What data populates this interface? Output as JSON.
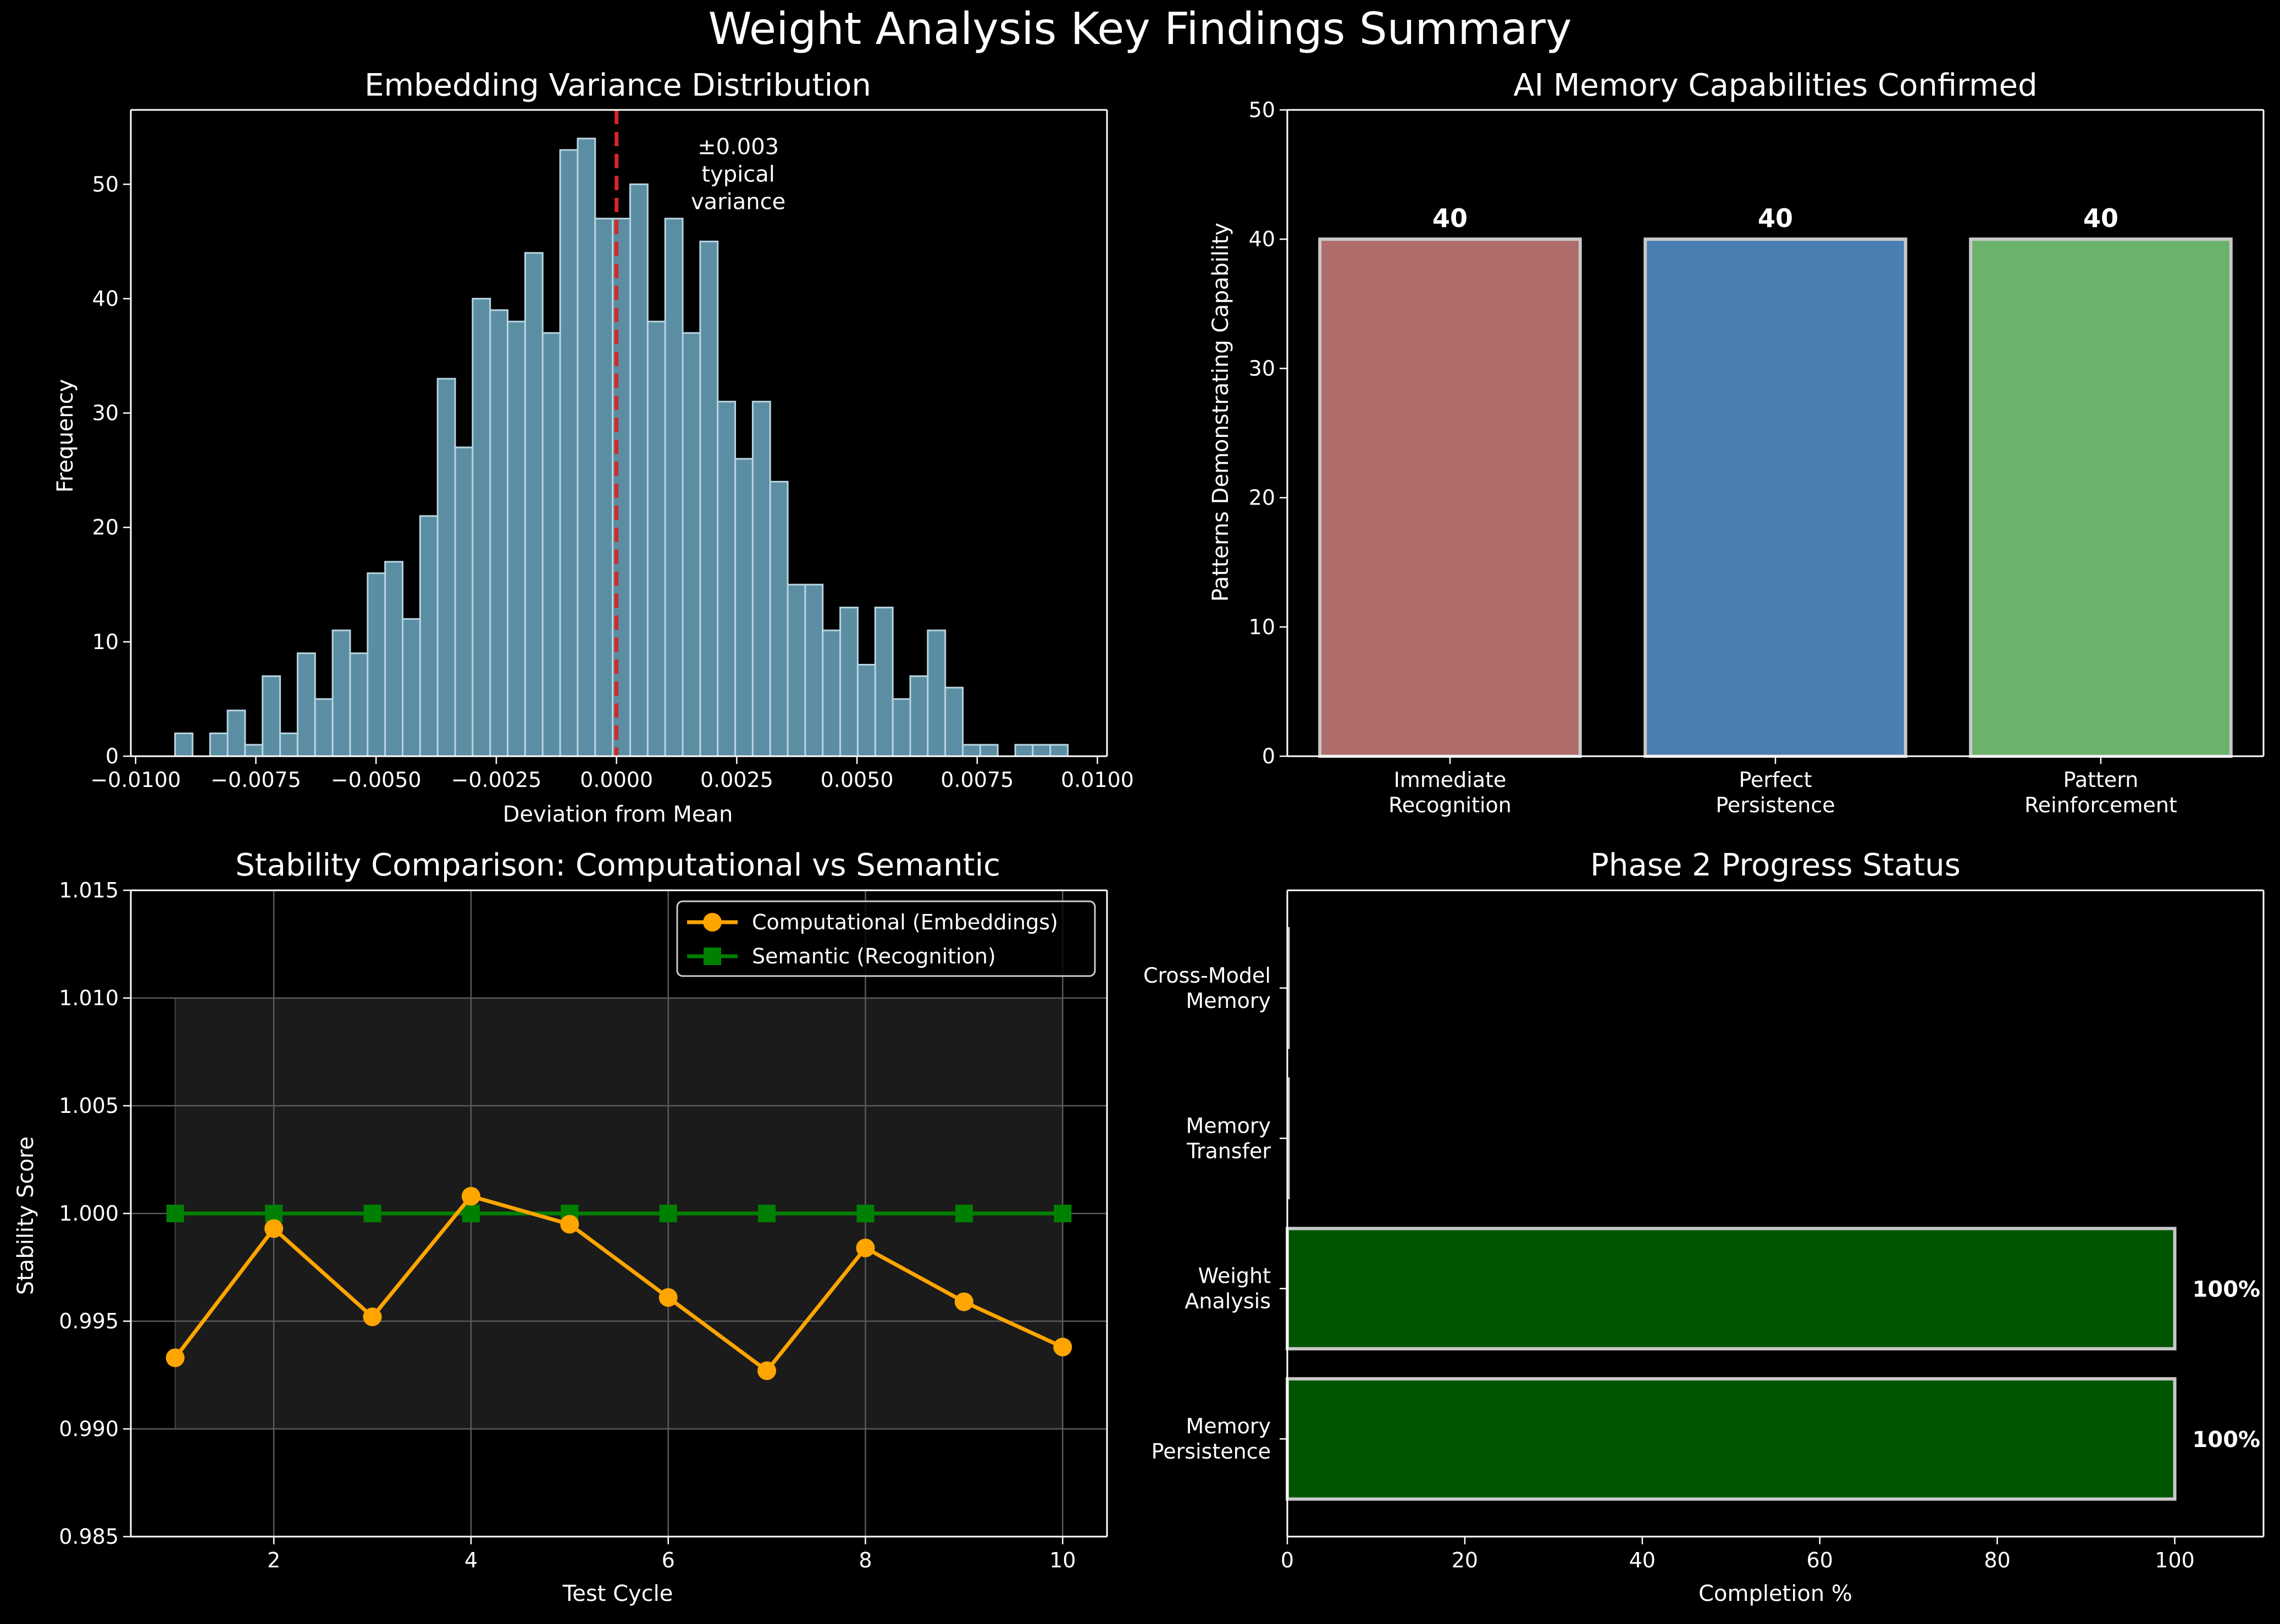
{
  "figure": {
    "title": "Weight Analysis Key Findings Summary",
    "background": "#000000"
  },
  "chart_data": [
    {
      "type": "bar",
      "subtype": "histogram",
      "title": "Embedding Variance Distribution",
      "xlabel": "Deviation from Mean",
      "ylabel": "Frequency",
      "xlim": [
        -0.0101,
        0.0102
      ],
      "ylim": [
        0,
        56.5
      ],
      "bin_start": -0.00918,
      "bin_width": 0.000364,
      "values": [
        2,
        0,
        2,
        4,
        1,
        7,
        2,
        9,
        5,
        11,
        9,
        16,
        17,
        12,
        21,
        33,
        27,
        40,
        39,
        38,
        44,
        37,
        53,
        54,
        47,
        47,
        50,
        38,
        47,
        37,
        45,
        31,
        26,
        31,
        24,
        15,
        15,
        11,
        13,
        8,
        13,
        5,
        7,
        11,
        6,
        1,
        1,
        0,
        1,
        1,
        1
      ],
      "xticks": [
        -0.01,
        -0.0075,
        -0.005,
        -0.0025,
        0.0,
        0.0025,
        0.005,
        0.0075,
        0.01
      ],
      "xtick_labels": [
        "−0.0100",
        "−0.0075",
        "−0.0050",
        "−0.0025",
        "0.0000",
        "0.0025",
        "0.0050",
        "0.0075",
        "0.0100"
      ],
      "yticks": [
        0,
        10,
        20,
        30,
        40,
        50
      ],
      "ytick_labels": [
        "0",
        "10",
        "20",
        "30",
        "40",
        "50"
      ],
      "vline": {
        "x": 0.0,
        "color": "#d62728",
        "style": "dashed"
      },
      "annotation": {
        "lines": [
          "±0.003",
          "typical",
          "variance"
        ],
        "x": 0.001,
        "y": 53.5
      },
      "bar_color": "#5b8ea3",
      "edge_color": "#b8d4e0",
      "grid": false
    },
    {
      "type": "bar",
      "title": "AI Memory Capabilities Confirmed",
      "ylabel": "Patterns Demonstrating Capability",
      "categories": [
        [
          "Immediate",
          "Recognition"
        ],
        [
          "Perfect",
          "Persistence"
        ],
        [
          "Pattern",
          "Reinforcement"
        ]
      ],
      "values": [
        40,
        40,
        40
      ],
      "value_labels": [
        "40",
        "40",
        "40"
      ],
      "colors": [
        "#b06b6b",
        "#4a7db1",
        "#6bb26b"
      ],
      "edge_color": "#c8c8c8",
      "ylim": [
        0,
        50
      ],
      "yticks": [
        0,
        10,
        20,
        30,
        40,
        50
      ],
      "ytick_labels": [
        "0",
        "10",
        "20",
        "30",
        "40",
        "50"
      ],
      "grid": false
    },
    {
      "type": "line",
      "title": "Stability Comparison: Computational vs Semantic",
      "xlabel": "Test Cycle",
      "ylabel": "Stability Score",
      "x": [
        1,
        2,
        3,
        4,
        5,
        6,
        7,
        8,
        9,
        10
      ],
      "series": [
        {
          "name": "Computational (Embeddings)",
          "values": [
            0.9933,
            0.9993,
            0.9952,
            1.0008,
            0.9995,
            0.9961,
            0.9927,
            0.9984,
            0.9959,
            0.9938
          ],
          "color": "#ffa500",
          "marker": "circle"
        },
        {
          "name": "Semantic (Recognition)",
          "values": [
            1.0,
            1.0,
            1.0,
            1.0,
            1.0,
            1.0,
            1.0,
            1.0,
            1.0,
            1.0
          ],
          "color": "#008000",
          "marker": "square"
        }
      ],
      "shaded_region": {
        "x": [
          1,
          10
        ],
        "y": [
          0.99,
          1.01
        ],
        "color": "#1b1b1b"
      },
      "xlim": [
        0.55,
        10.45
      ],
      "ylim": [
        0.985,
        1.015
      ],
      "xticks": [
        2,
        4,
        6,
        8,
        10
      ],
      "xtick_labels": [
        "2",
        "4",
        "6",
        "8",
        "10"
      ],
      "yticks": [
        0.985,
        0.99,
        0.995,
        1.0,
        1.005,
        1.01,
        1.015
      ],
      "ytick_labels": [
        "0.985",
        "0.990",
        "0.995",
        "1.000",
        "1.005",
        "1.010",
        "1.015"
      ],
      "legend_position": "top-right",
      "grid": true
    },
    {
      "type": "bar",
      "orientation": "horizontal",
      "title": "Phase 2 Progress Status",
      "xlabel": "Completion %",
      "categories": [
        [
          "Memory",
          "Persistence"
        ],
        [
          "Weight",
          "Analysis"
        ],
        [
          "Memory",
          "Transfer"
        ],
        [
          "Cross-Model",
          "Memory"
        ]
      ],
      "values": [
        100,
        100,
        0,
        0
      ],
      "value_labels": [
        "100%",
        "100%",
        "",
        ""
      ],
      "bar_color": "#005500",
      "edge_color": "#c8c8c8",
      "xlim": [
        0,
        110
      ],
      "xticks": [
        0,
        20,
        40,
        60,
        80,
        100
      ],
      "xtick_labels": [
        "0",
        "20",
        "40",
        "60",
        "80",
        "100"
      ],
      "grid": false
    }
  ]
}
